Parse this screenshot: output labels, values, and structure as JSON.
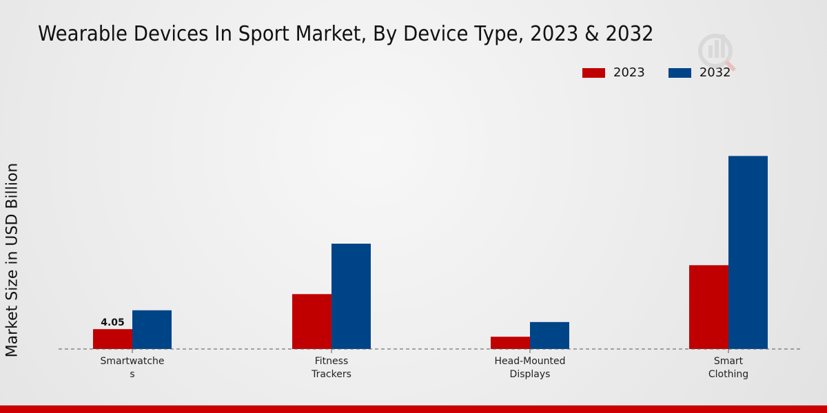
{
  "chart_data": {
    "type": "bar",
    "title": "Wearable Devices In Sport Market, By Device Type, 2023 & 2032",
    "xlabel": "",
    "ylabel": "Market Size in USD Billion",
    "categories": [
      "Smartwatches",
      "Fitness Trackers",
      "Head-Mounted Displays",
      "Smart Clothing"
    ],
    "category_lines": [
      [
        "Smartwatche",
        "s"
      ],
      [
        "Fitness",
        "Trackers"
      ],
      [
        "Head-Mounted",
        "Displays"
      ],
      [
        "Smart",
        "Clothing"
      ]
    ],
    "series": [
      {
        "name": "2023",
        "color": "#c00000",
        "values": [
          4.05,
          11.2,
          2.5,
          17.1
        ]
      },
      {
        "name": "2032",
        "color": "#004488",
        "values": [
          7.9,
          21.5,
          5.5,
          39.4
        ]
      }
    ],
    "data_labels": [
      {
        "series": 0,
        "index": 0,
        "text": "4.05"
      }
    ],
    "ylim": [
      0,
      60
    ],
    "legend_position": "top-right",
    "grid": false
  },
  "footer_color": "#cc0000"
}
